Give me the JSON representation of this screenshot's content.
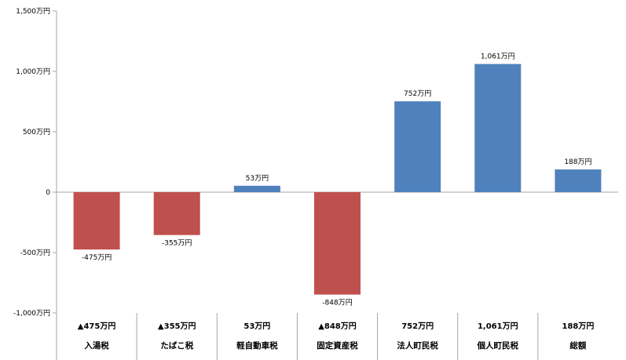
{
  "chart_data": {
    "type": "bar",
    "title": "",
    "xlabel": "",
    "ylabel": "",
    "ylim": [
      -1000,
      1500
    ],
    "yticks": [
      -1000,
      -500,
      0,
      500,
      1000,
      1500
    ],
    "ytick_labels": [
      "-1,000万円",
      "-500万円",
      "0",
      "500万円",
      "1,000万円",
      "1,500万円"
    ],
    "categories": [
      "入湯税",
      "たばこ税",
      "軽自動車税",
      "固定資産税",
      "法人町民税",
      "個人町民税",
      "総額"
    ],
    "values": [
      -475,
      -355,
      53,
      -848,
      752,
      1061,
      188
    ],
    "data_labels": [
      "-475万円",
      "-355万円",
      "53万円",
      "-848万円",
      "752万円",
      "1,061万円",
      "188万円"
    ],
    "table_values": [
      "▲475万円",
      "▲355万円",
      "53万円",
      "▲848万円",
      "752万円",
      "1,061万円",
      "188万円"
    ],
    "colors": {
      "positive": "#4f81bd",
      "negative": "#c0504d"
    },
    "grid": false,
    "legend": "none"
  }
}
